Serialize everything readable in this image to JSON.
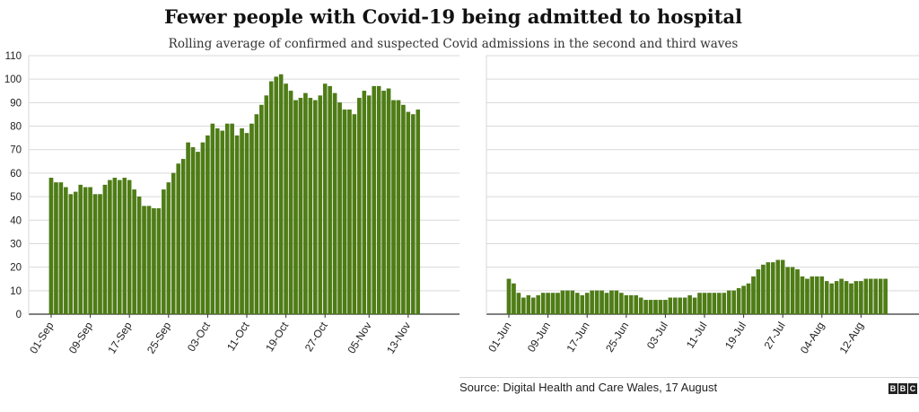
{
  "title": "Fewer people with Covid-19 being admitted to hospital",
  "subtitle": "Rolling average of confirmed and suspected Covid admissions in the second and third waves",
  "source": "Source: Digital Health and Care Wales, 17 August",
  "brand": [
    "B",
    "B",
    "C"
  ],
  "colors": {
    "bar": "#4e7d14",
    "bar_edge": "#3f6a0c",
    "grid": "#d9d9d9",
    "axis": "#333333"
  },
  "chart_data": [
    {
      "type": "bar",
      "name": "second wave",
      "ylim": [
        0,
        110
      ],
      "yticks": [
        0,
        10,
        20,
        30,
        40,
        50,
        60,
        70,
        80,
        90,
        100,
        110
      ],
      "grid": true,
      "tick_labels": [
        "01-Sep",
        "09-Sep",
        "17-Sep",
        "25-Sep",
        "03-Oct",
        "11-Oct",
        "19-Oct",
        "27-Oct",
        "05-Nov",
        "13-Nov"
      ],
      "tick_label_indices": [
        0,
        8,
        16,
        24,
        32,
        40,
        48,
        56,
        65,
        73
      ],
      "values": [
        58,
        56,
        56,
        54,
        51,
        52,
        55,
        54,
        54,
        51,
        51,
        55,
        57,
        58,
        57,
        58,
        57,
        53,
        50,
        46,
        46,
        45,
        45,
        53,
        56,
        60,
        64,
        66,
        73,
        71,
        69,
        73,
        76,
        81,
        79,
        78,
        81,
        81,
        76,
        79,
        77,
        81,
        85,
        89,
        93,
        99,
        101,
        102,
        98,
        95,
        91,
        92,
        94,
        92,
        91,
        93,
        98,
        97,
        94,
        90,
        87,
        87,
        85,
        92,
        95,
        93,
        97,
        97,
        95,
        96,
        91,
        91,
        89,
        86,
        85,
        87
      ]
    },
    {
      "type": "bar",
      "name": "third wave",
      "ylim": [
        0,
        110
      ],
      "grid": true,
      "tick_labels": [
        "01-Jun",
        "09-Jun",
        "17-Jun",
        "25-Jun",
        "03-Jul",
        "11-Jul",
        "19-Jul",
        "27-Jul",
        "04-Aug",
        "12-Aug"
      ],
      "tick_label_indices": [
        0,
        8,
        16,
        24,
        32,
        40,
        48,
        56,
        64,
        72
      ],
      "values": [
        15,
        13,
        9,
        7,
        8,
        7,
        8,
        9,
        9,
        9,
        9,
        10,
        10,
        10,
        9,
        8,
        9,
        10,
        10,
        10,
        9,
        10,
        10,
        9,
        8,
        8,
        8,
        7,
        6,
        6,
        6,
        6,
        6,
        7,
        7,
        7,
        7,
        8,
        7,
        9,
        9,
        9,
        9,
        9,
        9,
        10,
        10,
        11,
        12,
        13,
        16,
        19,
        21,
        22,
        22,
        23,
        23,
        20,
        20,
        19,
        16,
        15,
        16,
        16,
        16,
        14,
        13,
        14,
        15,
        14,
        13,
        14,
        14,
        15,
        15,
        15,
        15,
        15
      ]
    }
  ]
}
